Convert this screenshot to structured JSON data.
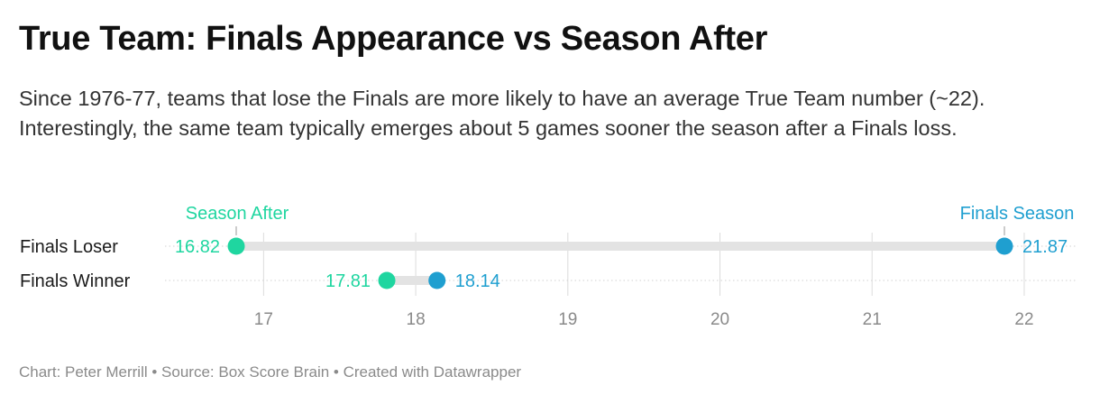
{
  "header": {
    "title": "True Team: Finals Appearance vs Season After",
    "subtitle": "Since 1976-77, teams that lose the Finals are more likely to have an average True Team number (~22). Interestingly, the same team typically emerges about 5 games sooner the season after a Finals loss."
  },
  "footer": {
    "credit": "Chart: Peter Merrill • Source: Box Score Brain • Created with Datawrapper"
  },
  "colors": {
    "season_after": "#1fd6a0",
    "finals_season": "#1f9fd0",
    "range_bar": "#e3e3e3",
    "gridline": "#dcdcdc",
    "tick_text": "#8a8a8a"
  },
  "chart_data": {
    "type": "range-dot",
    "x_ticks": [
      17,
      18,
      19,
      20,
      21,
      22
    ],
    "xlim": [
      16.82,
      22.35
    ],
    "grid": true,
    "legend_position": "top, labels above first row",
    "series": [
      {
        "name": "Season After",
        "color": "#1fd6a0"
      },
      {
        "name": "Finals Season",
        "color": "#1f9fd0"
      }
    ],
    "rows": [
      {
        "label": "Finals Loser",
        "season_after": 16.82,
        "finals_season": 21.87,
        "season_after_label": "16.82",
        "finals_season_label": "21.87"
      },
      {
        "label": "Finals Winner",
        "season_after": 17.81,
        "finals_season": 18.14,
        "season_after_label": "17.81",
        "finals_season_label": "18.14"
      }
    ]
  }
}
